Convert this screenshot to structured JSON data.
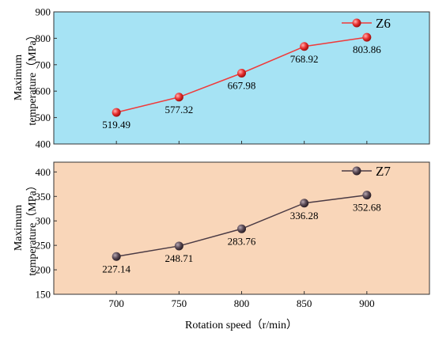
{
  "figure": {
    "xlabel": "Rotation speed（r/min）"
  },
  "chart_data": [
    {
      "type": "line",
      "x": [
        700,
        750,
        800,
        850,
        900
      ],
      "xlim": [
        650,
        950
      ],
      "xticks": [
        "700",
        "750",
        "800",
        "850",
        "900"
      ],
      "ylim": [
        400,
        900
      ],
      "yticks": [
        "400",
        "500",
        "600",
        "700",
        "800",
        "900"
      ],
      "ytick_values": [
        400,
        500,
        600,
        700,
        800,
        900
      ],
      "ylabel_line1": "Maximum",
      "ylabel_line2": "temperature（MPa）",
      "background": "#a6e3f4",
      "series": [
        {
          "name": "Z6",
          "values": [
            519.49,
            577.32,
            667.98,
            768.92,
            803.86
          ],
          "labels": [
            "519.49",
            "577.32",
            "667.98",
            "768.92",
            "803.86"
          ],
          "color": "#f03a3a",
          "marker_color": "#e83030"
        }
      ],
      "legend_placement": "top-right",
      "grid": false
    },
    {
      "type": "line",
      "x": [
        700,
        750,
        800,
        850,
        900
      ],
      "xlim": [
        650,
        950
      ],
      "xticks": [
        "700",
        "750",
        "800",
        "850",
        "900"
      ],
      "ylim": [
        150,
        420
      ],
      "yticks": [
        "150",
        "200",
        "250",
        "300",
        "350",
        "400"
      ],
      "ytick_values": [
        150,
        200,
        250,
        300,
        350,
        400
      ],
      "ylabel_line1": "Maximum",
      "ylabel_line2": "temperature（MPa）",
      "background": "#f9d6b9",
      "series": [
        {
          "name": "Z7",
          "values": [
            227.14,
            248.71,
            283.76,
            336.28,
            352.68
          ],
          "labels": [
            "227.14",
            "248.71",
            "283.76",
            "336.28",
            "352.68"
          ],
          "color": "#4a3a44",
          "marker_color": "#5a4a55"
        }
      ],
      "legend_placement": "top-right",
      "grid": false
    }
  ]
}
